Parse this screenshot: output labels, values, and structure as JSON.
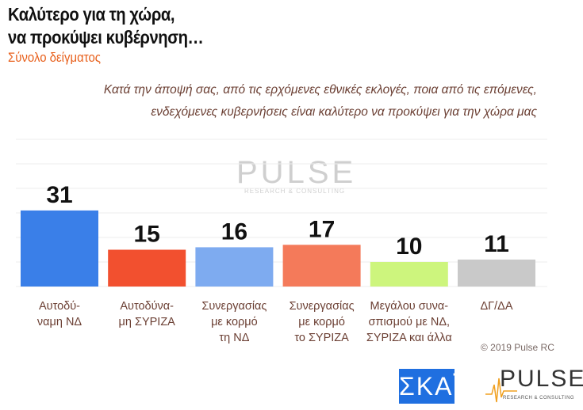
{
  "header": {
    "title_line1": "Καλύτερο για τη χώρα,",
    "title_line2": "να προκύψει κυβέρνηση…",
    "subtitle": "Σύνολο δείγματος",
    "question_line1": "Κατά την άποψή σας, από τις ερχόμενες εθνικές εκλογές, ποια από τις επόμενες,",
    "question_line2": "ενδεχόμενες κυβερνήσεις είναι καλύτερο να προκύψει για την χώρα μας"
  },
  "chart_data": {
    "type": "bar",
    "title": "Καλύτερο για τη χώρα, να προκύψει κυβέρνηση…",
    "categories": [
      [
        "Αυτοδύ-",
        "ναμη ΝΔ"
      ],
      [
        "Αυτοδύνα-",
        "μη ΣΥΡΙΖΑ"
      ],
      [
        "Συνεργασίας",
        "με κορμό",
        "τη ΝΔ"
      ],
      [
        "Συνεργασίας",
        "με κορμό",
        "το ΣΥΡΙΖΑ"
      ],
      [
        "Μεγάλου συνα-",
        "σπισμού με ΝΔ,",
        "ΣΥΡΙΖΑ και άλλα"
      ],
      [
        "ΔΓ/ΔΑ"
      ]
    ],
    "values": [
      31,
      15,
      16,
      17,
      10,
      11
    ],
    "colors": [
      "#3a7fe8",
      "#f2502f",
      "#7eabf0",
      "#f47a5a",
      "#cdf57d",
      "#c9c9c9"
    ],
    "ylim": [
      0,
      60
    ],
    "grid": true,
    "xlabel": "",
    "ylabel": ""
  },
  "footer": {
    "copyright": "© 2019 Pulse RC",
    "skai_logo": "ΣΚΑΪ",
    "pulse_logo": "PULSE",
    "pulse_tagline": "RESEARCH & CONSULTING"
  }
}
